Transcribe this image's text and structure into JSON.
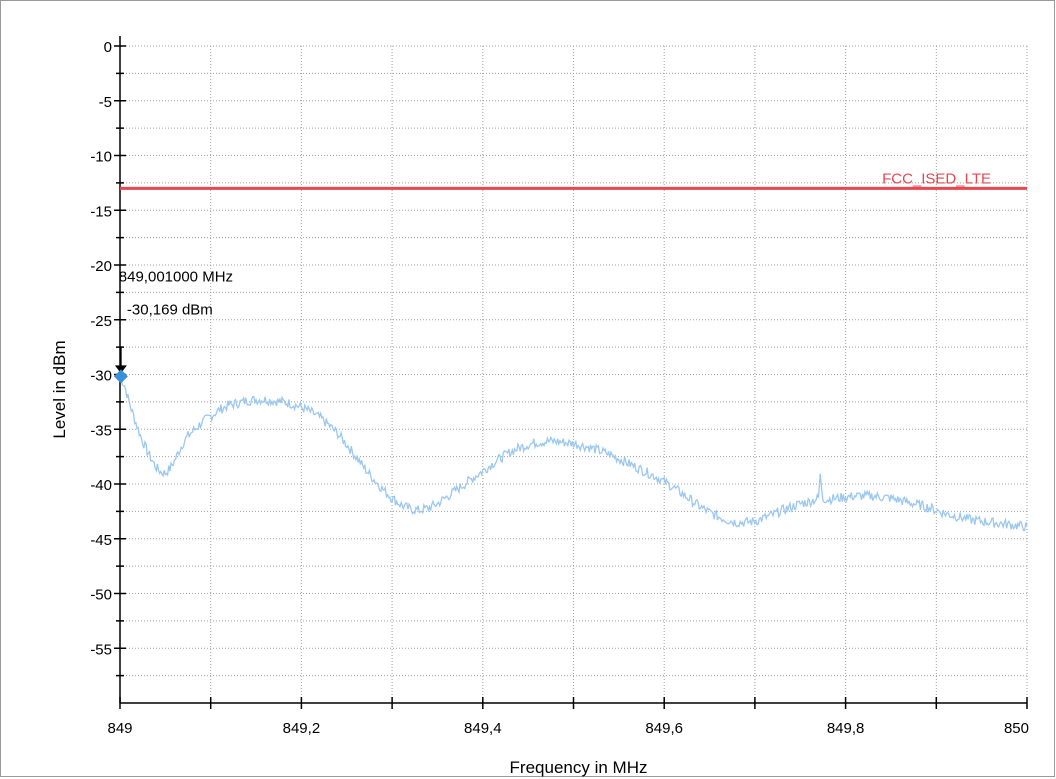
{
  "chart_data": {
    "type": "line",
    "xlabel": "Frequency in MHz",
    "ylabel": "Level in dBm",
    "xlim": [
      849,
      850
    ],
    "ylim": [
      -60,
      0
    ],
    "x_ticks": [
      849,
      849.1,
      849.2,
      849.3,
      849.4,
      849.5,
      849.6,
      849.7,
      849.8,
      849.9,
      850
    ],
    "x_tick_labels": [
      "849",
      "",
      "849,2",
      "",
      "849,4",
      "",
      "849,6",
      "",
      "849,8",
      "",
      "850"
    ],
    "y_ticks": [
      0,
      -5,
      -10,
      -15,
      -20,
      -25,
      -30,
      -35,
      -40,
      -45,
      -50,
      -55
    ],
    "y_tick_labels": [
      "0",
      "-5",
      "-10",
      "-15",
      "-20",
      "-25",
      "-30",
      "-35",
      "-40",
      "-45",
      "-50",
      "-55"
    ],
    "grid": true,
    "series": [
      {
        "color": "#9cc8ef",
        "points": [
          [
            849.0,
            -30.2
          ],
          [
            849.005,
            -31.0
          ],
          [
            849.01,
            -32.5
          ],
          [
            849.015,
            -33.8
          ],
          [
            849.02,
            -35.0
          ],
          [
            849.025,
            -36.1
          ],
          [
            849.03,
            -37.0
          ],
          [
            849.035,
            -37.8
          ],
          [
            849.04,
            -38.5
          ],
          [
            849.045,
            -38.9
          ],
          [
            849.05,
            -39.0
          ],
          [
            849.055,
            -38.6
          ],
          [
            849.06,
            -37.9
          ],
          [
            849.065,
            -37.0
          ],
          [
            849.07,
            -36.2
          ],
          [
            849.075,
            -35.6
          ],
          [
            849.08,
            -35.2
          ],
          [
            849.09,
            -34.4
          ],
          [
            849.1,
            -33.8
          ],
          [
            849.11,
            -33.2
          ],
          [
            849.12,
            -32.8
          ],
          [
            849.13,
            -32.6
          ],
          [
            849.14,
            -32.4
          ],
          [
            849.15,
            -32.3
          ],
          [
            849.16,
            -32.3
          ],
          [
            849.17,
            -32.4
          ],
          [
            849.18,
            -32.5
          ],
          [
            849.19,
            -32.7
          ],
          [
            849.2,
            -33.0
          ],
          [
            849.21,
            -33.4
          ],
          [
            849.22,
            -33.9
          ],
          [
            849.23,
            -34.6
          ],
          [
            849.24,
            -35.4
          ],
          [
            849.25,
            -36.4
          ],
          [
            849.26,
            -37.5
          ],
          [
            849.27,
            -38.6
          ],
          [
            849.28,
            -39.6
          ],
          [
            849.29,
            -40.5
          ],
          [
            849.3,
            -41.3
          ],
          [
            849.31,
            -41.9
          ],
          [
            849.32,
            -42.3
          ],
          [
            849.33,
            -42.4
          ],
          [
            849.34,
            -42.2
          ],
          [
            849.35,
            -41.8
          ],
          [
            849.36,
            -41.2
          ],
          [
            849.37,
            -40.6
          ],
          [
            849.38,
            -40.0
          ],
          [
            849.39,
            -39.4
          ],
          [
            849.4,
            -38.8
          ],
          [
            849.41,
            -38.2
          ],
          [
            849.42,
            -37.6
          ],
          [
            849.43,
            -37.1
          ],
          [
            849.44,
            -36.7
          ],
          [
            849.45,
            -36.4
          ],
          [
            849.46,
            -36.2
          ],
          [
            849.47,
            -36.1
          ],
          [
            849.48,
            -36.1
          ],
          [
            849.49,
            -36.2
          ],
          [
            849.5,
            -36.3
          ],
          [
            849.51,
            -36.5
          ],
          [
            849.52,
            -36.7
          ],
          [
            849.53,
            -37.0
          ],
          [
            849.54,
            -37.3
          ],
          [
            849.55,
            -37.7
          ],
          [
            849.56,
            -38.1
          ],
          [
            849.57,
            -38.5
          ],
          [
            849.58,
            -38.9
          ],
          [
            849.59,
            -39.3
          ],
          [
            849.6,
            -39.8
          ],
          [
            849.61,
            -40.3
          ],
          [
            849.62,
            -40.9
          ],
          [
            849.63,
            -41.5
          ],
          [
            849.64,
            -42.1
          ],
          [
            849.65,
            -42.6
          ],
          [
            849.66,
            -43.0
          ],
          [
            849.67,
            -43.3
          ],
          [
            849.68,
            -43.5
          ],
          [
            849.69,
            -43.5
          ],
          [
            849.7,
            -43.4
          ],
          [
            849.71,
            -43.1
          ],
          [
            849.72,
            -42.8
          ],
          [
            849.73,
            -42.4
          ],
          [
            849.74,
            -42.1
          ],
          [
            849.75,
            -41.8
          ],
          [
            849.76,
            -41.6
          ],
          [
            849.77,
            -41.3
          ],
          [
            849.772,
            -39.3
          ],
          [
            849.775,
            -41.3
          ],
          [
            849.78,
            -41.4
          ],
          [
            849.79,
            -41.3
          ],
          [
            849.8,
            -41.2
          ],
          [
            849.81,
            -41.1
          ],
          [
            849.82,
            -41.1
          ],
          [
            849.83,
            -41.1
          ],
          [
            849.84,
            -41.2
          ],
          [
            849.85,
            -41.3
          ],
          [
            849.86,
            -41.5
          ],
          [
            849.87,
            -41.7
          ],
          [
            849.88,
            -41.9
          ],
          [
            849.89,
            -42.1
          ],
          [
            849.9,
            -42.4
          ],
          [
            849.91,
            -42.7
          ],
          [
            849.92,
            -42.9
          ],
          [
            849.93,
            -43.1
          ],
          [
            849.94,
            -43.3
          ],
          [
            849.95,
            -43.4
          ],
          [
            849.96,
            -43.5
          ],
          [
            849.97,
            -43.6
          ],
          [
            849.98,
            -43.7
          ],
          [
            849.99,
            -43.8
          ],
          [
            850.0,
            -43.9
          ]
        ]
      }
    ],
    "limit_line": {
      "name": "FCC_ISED_LTE",
      "value": -13,
      "color": "#e8474f"
    },
    "marker": {
      "x": 849.001,
      "y": -30.169,
      "freq_label": "849,001000 MHz",
      "level_label": "-30,169 dBm",
      "color": "#3a8fd8"
    }
  }
}
